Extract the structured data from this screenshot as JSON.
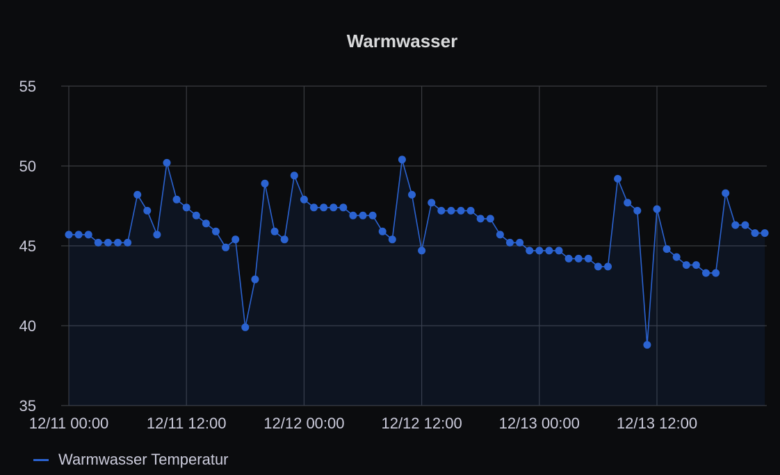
{
  "panel": {
    "title": "Warmwasser"
  },
  "legend": {
    "label": "Warmwasser Temperatur"
  },
  "colors": {
    "series": "#2b63d1",
    "fill": "rgba(43,99,209,0.10)",
    "background": "#0b0c0e",
    "grid": "#3a3c40",
    "text": "#ccccdc"
  },
  "chart_data": {
    "type": "line",
    "title": "Warmwasser",
    "xlabel": "",
    "ylabel": "",
    "ylim": [
      35,
      55
    ],
    "yticks": [
      35,
      40,
      45,
      50,
      55
    ],
    "xlim": [
      "12/11 00:00",
      "12/13 22:00"
    ],
    "xticks": [
      {
        "label": "12/11 00:00",
        "value": 0
      },
      {
        "label": "12/11 12:00",
        "value": 12
      },
      {
        "label": "12/12 00:00",
        "value": 24
      },
      {
        "label": "12/12 12:00",
        "value": 36
      },
      {
        "label": "12/13 00:00",
        "value": 48
      },
      {
        "label": "12/13 12:00",
        "value": 60
      }
    ],
    "grid": true,
    "legend_position": "bottom-left",
    "series": [
      {
        "name": "Warmwasser Temperatur",
        "points": [
          [
            0,
            45.7
          ],
          [
            1,
            45.7
          ],
          [
            2,
            45.7
          ],
          [
            3,
            45.2
          ],
          [
            4,
            45.2
          ],
          [
            5,
            45.2
          ],
          [
            6,
            45.2
          ],
          [
            7,
            48.2
          ],
          [
            8,
            47.2
          ],
          [
            9,
            45.7
          ],
          [
            10,
            50.2
          ],
          [
            11,
            47.9
          ],
          [
            12,
            47.4
          ],
          [
            13,
            46.9
          ],
          [
            14,
            46.4
          ],
          [
            15,
            45.9
          ],
          [
            16,
            44.9
          ],
          [
            17,
            45.4
          ],
          [
            18,
            39.9
          ],
          [
            19,
            42.9
          ],
          [
            20,
            48.9
          ],
          [
            21,
            45.9
          ],
          [
            22,
            45.4
          ],
          [
            23,
            49.4
          ],
          [
            24,
            47.9
          ],
          [
            25,
            47.4
          ],
          [
            26,
            47.4
          ],
          [
            27,
            47.4
          ],
          [
            28,
            47.4
          ],
          [
            29,
            46.9
          ],
          [
            30,
            46.9
          ],
          [
            31,
            46.9
          ],
          [
            32,
            45.9
          ],
          [
            33,
            45.4
          ],
          [
            34,
            50.4
          ],
          [
            35,
            48.2
          ],
          [
            36,
            44.7
          ],
          [
            37,
            47.7
          ],
          [
            38,
            47.2
          ],
          [
            39,
            47.2
          ],
          [
            40,
            47.2
          ],
          [
            41,
            47.2
          ],
          [
            42,
            46.7
          ],
          [
            43,
            46.7
          ],
          [
            44,
            45.7
          ],
          [
            45,
            45.2
          ],
          [
            46,
            45.2
          ],
          [
            47,
            44.7
          ],
          [
            48,
            44.7
          ],
          [
            49,
            44.7
          ],
          [
            50,
            44.7
          ],
          [
            51,
            44.2
          ],
          [
            52,
            44.2
          ],
          [
            53,
            44.2
          ],
          [
            54,
            43.7
          ],
          [
            55,
            43.7
          ],
          [
            56,
            49.2
          ],
          [
            57,
            47.7
          ],
          [
            58,
            47.2
          ],
          [
            59,
            38.8
          ],
          [
            60,
            47.3
          ],
          [
            61,
            44.8
          ],
          [
            62,
            44.3
          ],
          [
            63,
            43.8
          ],
          [
            64,
            43.8
          ],
          [
            65,
            43.3
          ],
          [
            66,
            43.3
          ],
          [
            67,
            48.3
          ],
          [
            68,
            46.3
          ],
          [
            69,
            46.3
          ],
          [
            70,
            45.8
          ],
          [
            71,
            45.8
          ]
        ]
      }
    ]
  }
}
